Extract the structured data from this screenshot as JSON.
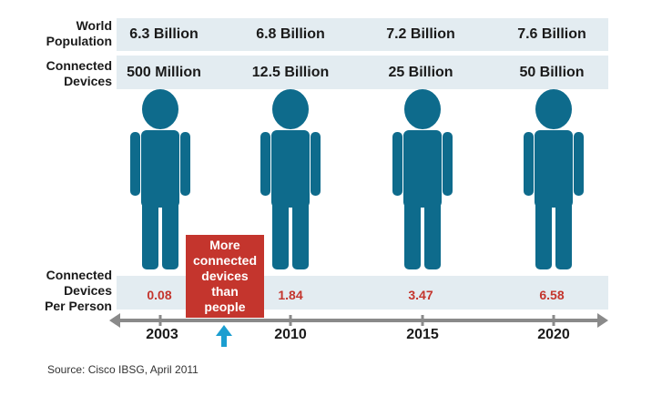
{
  "chart_data": {
    "type": "table",
    "rows": [
      {
        "label": "World\nPopulation",
        "values": [
          "6.3 Billion",
          "6.8 Billion",
          "7.2 Billion",
          "7.6 Billion"
        ]
      },
      {
        "label": "Connected\nDevices",
        "values": [
          "500 Million",
          "12.5 Billion",
          "25 Billion",
          "50 Billion"
        ]
      },
      {
        "label": "Connected\nDevices\nPer Person",
        "values": [
          "0.08",
          "1.84",
          "3.47",
          "6.58"
        ]
      }
    ],
    "categories": [
      "2003",
      "2010",
      "2015",
      "2020"
    ],
    "world_population_billion": [
      6.3,
      6.8,
      7.2,
      7.6
    ],
    "connected_devices_billion": [
      0.5,
      12.5,
      25,
      50
    ],
    "devices_per_person": [
      0.08,
      1.84,
      3.47,
      6.58
    ]
  },
  "callout": {
    "text": "More\nconnected\ndevices\nthan\npeople",
    "color": "#c4352d"
  },
  "source": "Source: Cisco IBSG, April 2011",
  "colors": {
    "person": "#0e6b8c",
    "ratio_text": "#c4352d",
    "band": "#e3ecf1",
    "axis": "#8a8a8a",
    "arrow": "#1b9ed0"
  },
  "icons": {
    "figure": "person-icon",
    "marker": "up-arrow-icon"
  }
}
